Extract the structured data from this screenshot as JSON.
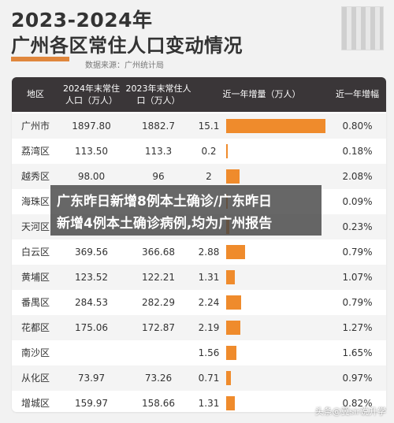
{
  "title_year": "2023-2024年",
  "title_main": "广州各区常住人口变动情况",
  "source": "数据来源：广州统计局",
  "headers": {
    "district": "地区",
    "pop_2024": "2024年末常住人口（万人）",
    "pop_2023": "2023年末常住人口（万人）",
    "increase": "近一年增量（万人）",
    "growth": "近一年增幅"
  },
  "overlay": {
    "line1": "广东昨日新增8例本土确诊/广东昨日",
    "line2": "新增4例本土确诊病例,均为广州报告"
  },
  "watermark": "头条@冀sir说升学",
  "colors": {
    "header_bg": "#3a3638",
    "bar": "#ef8b2c",
    "accent": "#e0873d"
  },
  "chart_data": {
    "type": "table",
    "bar_column": "近一年增量（万人）",
    "rows": [
      {
        "district": "广州市",
        "pop_2024": "1897.80",
        "pop_2023": "1882.7",
        "increase": "15.1",
        "growth": "0.80%",
        "inc_value": 15.1
      },
      {
        "district": "荔湾区",
        "pop_2024": "113.50",
        "pop_2023": "113.3",
        "increase": "0.2",
        "growth": "0.18%",
        "inc_value": 0.2
      },
      {
        "district": "越秀区",
        "pop_2024": "98.00",
        "pop_2023": "96",
        "increase": "2",
        "growth": "2.08%",
        "inc_value": 2
      },
      {
        "district": "海珠区",
        "pop_2024": "",
        "pop_2023": "",
        "increase": "",
        "growth": "0.09%",
        "inc_value": 0.16
      },
      {
        "district": "天河区",
        "pop_2024": "",
        "pop_2023": "",
        "increase": "",
        "growth": "0.23%",
        "inc_value": 0.52
      },
      {
        "district": "白云区",
        "pop_2024": "369.56",
        "pop_2023": "366.68",
        "increase": "2.88",
        "growth": "0.79%",
        "inc_value": 2.88
      },
      {
        "district": "黄埔区",
        "pop_2024": "123.52",
        "pop_2023": "122.21",
        "increase": "1.31",
        "growth": "1.07%",
        "inc_value": 1.31
      },
      {
        "district": "番禺区",
        "pop_2024": "284.53",
        "pop_2023": "282.29",
        "increase": "2.24",
        "growth": "0.79%",
        "inc_value": 2.24
      },
      {
        "district": "花都区",
        "pop_2024": "175.06",
        "pop_2023": "172.87",
        "increase": "2.19",
        "growth": "1.27%",
        "inc_value": 2.19
      },
      {
        "district": "南沙区",
        "pop_2024": "",
        "pop_2023": "",
        "increase": "1.56",
        "growth": "1.65%",
        "inc_value": 1.56
      },
      {
        "district": "从化区",
        "pop_2024": "73.97",
        "pop_2023": "73.26",
        "increase": "0.71",
        "growth": "0.97%",
        "inc_value": 0.71
      },
      {
        "district": "增城区",
        "pop_2024": "159.97",
        "pop_2023": "158.66",
        "increase": "1.31",
        "growth": "0.82%",
        "inc_value": 1.31
      }
    ]
  }
}
